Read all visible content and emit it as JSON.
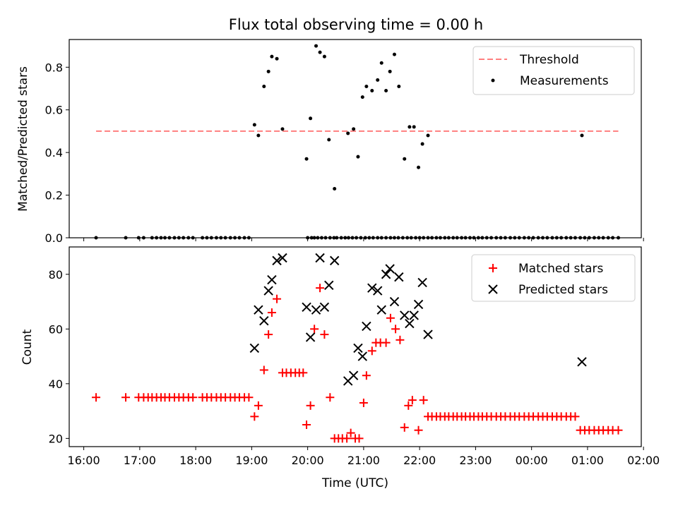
{
  "title": "Flux total observing time = 0.00 h",
  "xlabel": "Time (UTC)",
  "x_ticks": [
    "16:00",
    "17:00",
    "18:00",
    "19:00",
    "20:00",
    "21:00",
    "22:00",
    "23:00",
    "00:00",
    "01:00",
    "02:00"
  ],
  "chart_data": [
    {
      "type": "scatter",
      "ylabel": "Matched/Predicted stars",
      "ylim": [
        0,
        0.93
      ],
      "y_ticks": [
        "0.0",
        "0.2",
        "0.4",
        "0.6",
        "0.8"
      ],
      "xlim_hours": [
        15.74,
        25.96
      ],
      "legend": "top-right",
      "threshold": {
        "name": "Threshold",
        "value": 0.5,
        "x_range": [
          16.22,
          25.55
        ],
        "color": "#ff7f7f"
      },
      "series": [
        {
          "name": "Measurements",
          "color": "#000000",
          "x": [
            19.05,
            19.12,
            19.22,
            19.3,
            19.36,
            19.45,
            19.55,
            19.98,
            20.05,
            20.15,
            20.22,
            20.3,
            20.38,
            20.48,
            20.72,
            20.82,
            20.9,
            20.98,
            21.05,
            21.15,
            21.25,
            21.32,
            21.4,
            21.47,
            21.55,
            21.63,
            21.73,
            21.82,
            21.9,
            21.98,
            22.05,
            22.15,
            24.9
          ],
          "y": [
            0.53,
            0.48,
            0.71,
            0.78,
            0.85,
            0.84,
            0.51,
            0.37,
            0.56,
            0.9,
            0.87,
            0.85,
            0.46,
            0.23,
            0.49,
            0.51,
            0.38,
            0.66,
            0.71,
            0.69,
            0.74,
            0.82,
            0.69,
            0.78,
            0.86,
            0.71,
            0.37,
            0.52,
            0.52,
            0.33,
            0.44,
            0.48,
            0.48
          ]
        },
        {
          "name": "",
          "color": "#000000",
          "x": [
            16.22,
            16.75,
            16.98,
            17.07,
            17.22,
            17.3,
            17.38,
            17.45,
            17.53,
            17.62,
            17.7,
            17.78,
            17.87,
            17.95,
            18.12,
            18.2,
            18.28,
            18.37,
            18.45,
            18.53,
            18.62,
            18.7,
            18.78,
            18.87,
            18.95,
            20.0,
            20.07,
            20.12,
            20.18,
            20.25,
            20.32,
            20.4,
            20.47,
            20.52,
            20.6,
            20.67,
            20.73,
            20.8,
            20.87,
            20.95,
            21.03,
            21.1,
            21.17,
            21.25,
            21.32,
            21.4,
            21.48,
            21.55,
            21.62,
            21.7,
            21.78,
            21.85,
            21.93,
            22.0,
            22.07,
            22.15,
            22.22,
            22.3,
            22.37,
            22.45,
            22.52,
            22.6,
            22.67,
            22.75,
            22.82,
            22.9,
            22.97,
            23.05,
            23.12,
            23.2,
            23.28,
            23.37,
            23.45,
            23.53,
            23.62,
            23.7,
            23.78,
            23.87,
            23.95,
            24.03,
            24.12,
            24.2,
            24.28,
            24.37,
            24.45,
            24.53,
            24.62,
            24.7,
            24.78,
            24.87,
            24.95,
            25.03,
            25.12,
            25.2,
            25.28,
            25.37,
            25.45,
            25.55
          ],
          "y": [
            0,
            0,
            0,
            0,
            0,
            0,
            0,
            0,
            0,
            0,
            0,
            0,
            0,
            0,
            0,
            0,
            0,
            0,
            0,
            0,
            0,
            0,
            0,
            0,
            0,
            0,
            0,
            0,
            0,
            0,
            0,
            0,
            0,
            0,
            0,
            0,
            0,
            0,
            0,
            0,
            0,
            0,
            0,
            0,
            0,
            0,
            0,
            0,
            0,
            0,
            0,
            0,
            0,
            0,
            0,
            0,
            0,
            0,
            0,
            0,
            0,
            0,
            0,
            0,
            0,
            0,
            0,
            0,
            0,
            0,
            0,
            0,
            0,
            0,
            0,
            0,
            0,
            0,
            0,
            0,
            0,
            0,
            0,
            0,
            0,
            0,
            0,
            0,
            0,
            0,
            0,
            0,
            0,
            0,
            0,
            0,
            0,
            0
          ]
        }
      ]
    },
    {
      "type": "scatter",
      "ylabel": "Count",
      "ylim": [
        17,
        90
      ],
      "y_ticks": [
        "20",
        "40",
        "60",
        "80"
      ],
      "xlim_hours": [
        15.74,
        25.96
      ],
      "legend": "top-right",
      "series": [
        {
          "name": "Matched stars",
          "marker": "plus",
          "color": "#ff0000",
          "x": [
            16.22,
            16.75,
            16.98,
            17.07,
            17.15,
            17.22,
            17.3,
            17.38,
            17.45,
            17.53,
            17.62,
            17.7,
            17.78,
            17.87,
            17.95,
            18.12,
            18.2,
            18.28,
            18.37,
            18.45,
            18.53,
            18.62,
            18.7,
            18.78,
            18.87,
            18.95,
            19.05,
            19.12,
            19.22,
            19.3,
            19.36,
            19.45,
            19.55,
            19.62,
            19.7,
            19.78,
            19.85,
            19.92,
            19.98,
            20.05,
            20.12,
            20.22,
            20.3,
            20.4,
            20.48,
            20.55,
            20.62,
            20.7,
            20.77,
            20.85,
            20.92,
            21.0,
            21.05,
            21.15,
            21.22,
            21.3,
            21.4,
            21.48,
            21.57,
            21.65,
            21.73,
            21.8,
            21.87,
            21.98,
            22.07,
            22.15,
            22.22,
            22.3,
            22.37,
            22.45,
            22.52,
            22.6,
            22.67,
            22.75,
            22.82,
            22.9,
            22.97,
            23.05,
            23.12,
            23.2,
            23.28,
            23.37,
            23.45,
            23.53,
            23.62,
            23.7,
            23.78,
            23.87,
            23.95,
            24.03,
            24.12,
            24.2,
            24.28,
            24.37,
            24.45,
            24.53,
            24.62,
            24.7,
            24.78,
            24.87,
            24.95,
            25.03,
            25.12,
            25.2,
            25.28,
            25.37,
            25.45,
            25.55
          ],
          "y": [
            35,
            35,
            35,
            35,
            35,
            35,
            35,
            35,
            35,
            35,
            35,
            35,
            35,
            35,
            35,
            35,
            35,
            35,
            35,
            35,
            35,
            35,
            35,
            35,
            35,
            35,
            28,
            32,
            45,
            58,
            66,
            71,
            44,
            44,
            44,
            44,
            44,
            44,
            25,
            32,
            60,
            75,
            58,
            35,
            20,
            20,
            20,
            20,
            22,
            20,
            20,
            33,
            43,
            52,
            55,
            55,
            55,
            64,
            60,
            56,
            24,
            32,
            34,
            23,
            34,
            28,
            28,
            28,
            28,
            28,
            28,
            28,
            28,
            28,
            28,
            28,
            28,
            28,
            28,
            28,
            28,
            28,
            28,
            28,
            28,
            28,
            28,
            28,
            28,
            28,
            28,
            28,
            28,
            28,
            28,
            28,
            28,
            28,
            28,
            23,
            23,
            23,
            23,
            23,
            23,
            23,
            23,
            23
          ]
        },
        {
          "name": "Predicted stars",
          "marker": "x",
          "color": "#000000",
          "x": [
            19.05,
            19.12,
            19.22,
            19.3,
            19.36,
            19.45,
            19.55,
            19.98,
            20.05,
            20.15,
            20.22,
            20.3,
            20.38,
            20.48,
            20.72,
            20.82,
            20.9,
            20.98,
            21.05,
            21.15,
            21.25,
            21.32,
            21.4,
            21.47,
            21.55,
            21.63,
            21.73,
            21.82,
            21.9,
            21.98,
            22.05,
            22.15,
            24.9
          ],
          "y": [
            53,
            67,
            63,
            74,
            78,
            85,
            86,
            68,
            57,
            67,
            86,
            68,
            76,
            85,
            41,
            43,
            53,
            50,
            61,
            75,
            74,
            67,
            80,
            82,
            70,
            79,
            65,
            62,
            65,
            69,
            77,
            58,
            48
          ]
        }
      ]
    }
  ]
}
